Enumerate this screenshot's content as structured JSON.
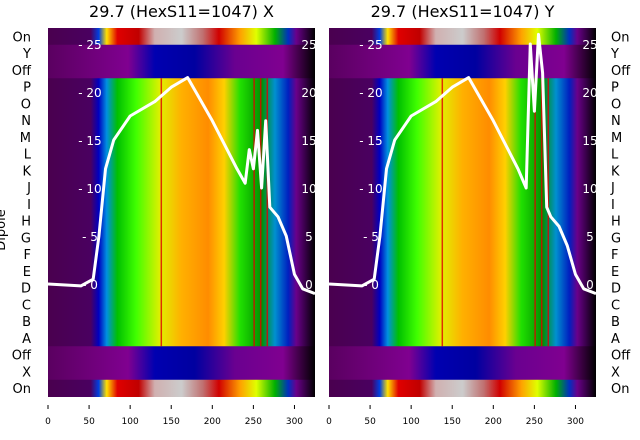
{
  "chart_data": [
    {
      "type": "heatmap",
      "title": "29.7 (HexS11=1047) X",
      "ylabel": "Dipole",
      "row_labels": [
        "On",
        "Y",
        "Off",
        "P",
        "O",
        "N",
        "M",
        "L",
        "K",
        "J",
        "I",
        "H",
        "G",
        "F",
        "E",
        "D",
        "C",
        "B",
        "A",
        "Off",
        "X",
        "On"
      ],
      "row_kinds": [
        "on",
        "band",
        "band",
        "dip",
        "dip",
        "dip",
        "dip",
        "dip",
        "dip",
        "dip",
        "dip",
        "dip",
        "dip",
        "dip",
        "dip",
        "dip",
        "dip",
        "dip",
        "dip",
        "band",
        "band",
        "on"
      ],
      "xticks": [
        0,
        50,
        100,
        150,
        200,
        250,
        300
      ],
      "xlim": [
        0,
        325
      ],
      "line": {
        "yticks": [
          0,
          5,
          10,
          15,
          20,
          25
        ],
        "ylim": [
          -2.5,
          28.5
        ],
        "x": [
          0,
          40,
          55,
          62,
          70,
          80,
          100,
          130,
          150,
          170,
          180,
          200,
          230,
          240,
          245,
          250,
          255,
          260,
          265,
          270,
          280,
          290,
          300,
          310,
          325
        ],
        "y": [
          0,
          -0.2,
          0.5,
          5,
          12,
          15,
          17.5,
          19,
          20.5,
          21.5,
          20,
          17,
          12,
          10.5,
          14,
          12,
          16,
          10,
          17,
          8,
          7,
          5,
          1,
          -0.5,
          -1
        ]
      }
    },
    {
      "type": "heatmap",
      "title": "29.7 (HexS11=1047) Y",
      "row_labels": [
        "On",
        "Y",
        "Off",
        "P",
        "O",
        "N",
        "M",
        "L",
        "K",
        "J",
        "I",
        "H",
        "G",
        "F",
        "E",
        "D",
        "C",
        "B",
        "A",
        "Off",
        "X",
        "On"
      ],
      "row_kinds": [
        "on",
        "band",
        "band",
        "dip",
        "dip",
        "dip",
        "dip",
        "dip",
        "dip",
        "dip",
        "dip",
        "dip",
        "dip",
        "dip",
        "dip",
        "dip",
        "dip",
        "dip",
        "dip",
        "band",
        "band",
        "on"
      ],
      "xticks": [
        0,
        50,
        100,
        150,
        200,
        250,
        300
      ],
      "xlim": [
        0,
        325
      ],
      "line": {
        "yticks": [
          0,
          5,
          10,
          15,
          20,
          25
        ],
        "ylim": [
          -2.5,
          28.5
        ],
        "x": [
          0,
          40,
          55,
          62,
          70,
          80,
          100,
          130,
          150,
          170,
          180,
          200,
          230,
          240,
          245,
          250,
          255,
          260,
          265,
          270,
          280,
          290,
          300,
          310,
          325
        ],
        "y": [
          0,
          -0.2,
          0.5,
          5,
          12,
          15,
          17.5,
          19,
          20.5,
          21.5,
          20,
          17,
          12,
          10,
          25,
          18,
          26,
          22,
          8,
          7,
          6,
          4,
          1,
          -0.5,
          -1
        ]
      }
    }
  ]
}
